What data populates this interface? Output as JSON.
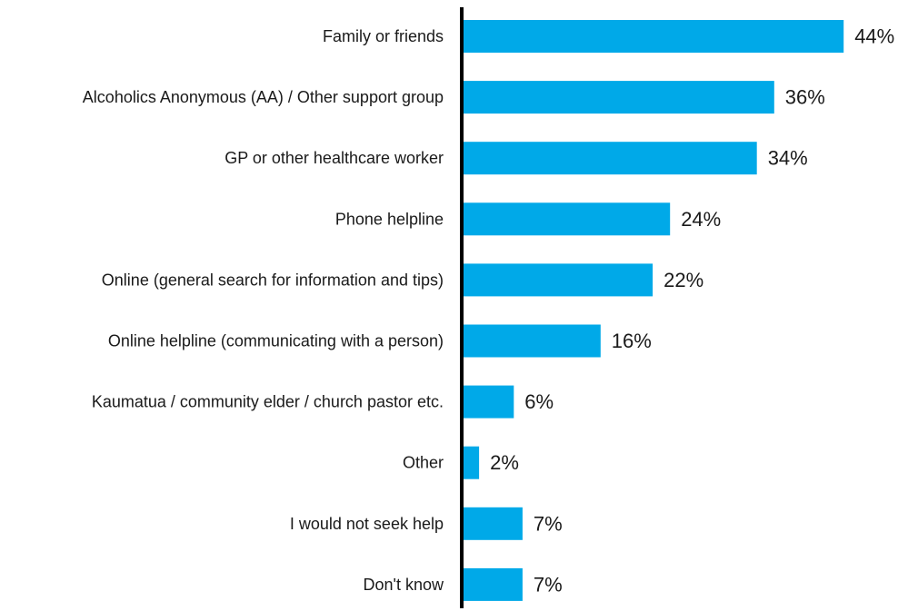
{
  "chart_data": {
    "type": "bar",
    "orientation": "horizontal",
    "title": "",
    "xlabel": "",
    "ylabel": "",
    "xlim": [
      0,
      50
    ],
    "grid": false,
    "legend": "none",
    "bar_color": "#00a9e8",
    "axis_color": "#000000",
    "value_suffix": "%",
    "categories": [
      "Family or friends",
      "Alcoholics Anonymous (AA) / Other support group",
      "GP or other healthcare worker",
      "Phone helpline",
      "Online (general search for information and tips)",
      "Online helpline (communicating with a person)",
      "Kaumatua / community elder / church pastor etc.",
      "Other",
      "I would not seek help",
      "Don't know"
    ],
    "values": [
      44,
      36,
      34,
      24,
      22,
      16,
      6,
      2,
      7,
      7
    ]
  }
}
